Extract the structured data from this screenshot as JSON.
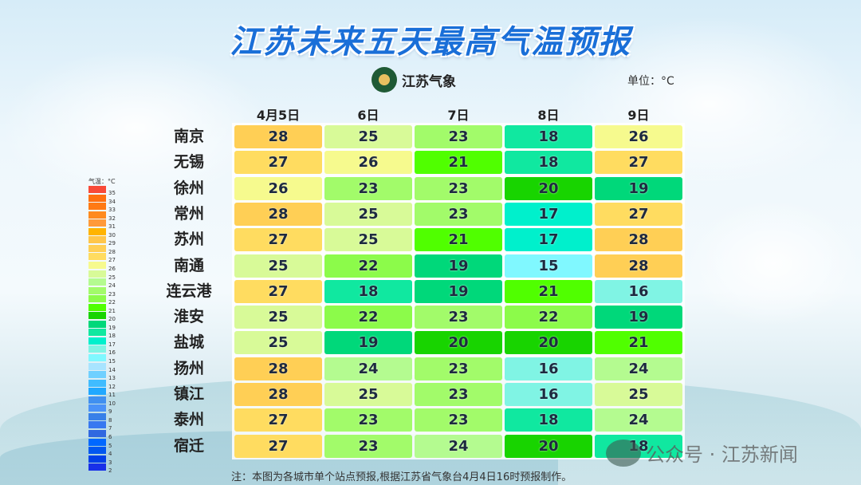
{
  "title": "江苏未来五天最高气温预报",
  "logo_text": "江苏气象",
  "unit": "单位：°C",
  "note": "注：本图为各城市单个站点预报,根据江苏省气象台4月4日16时预报制作。",
  "watermark": "公众号 · 江苏新闻",
  "chart_data": {
    "type": "heatmap",
    "title": "江苏未来五天最高气温预报",
    "columns": [
      "4月5日",
      "6日",
      "7日",
      "8日",
      "9日"
    ],
    "rows": [
      "南京",
      "无锡",
      "徐州",
      "常州",
      "苏州",
      "南通",
      "连云港",
      "淮安",
      "盐城",
      "扬州",
      "镇江",
      "泰州",
      "宿迁"
    ],
    "values": [
      [
        28,
        25,
        23,
        18,
        26
      ],
      [
        27,
        26,
        21,
        18,
        27
      ],
      [
        26,
        23,
        23,
        20,
        19
      ],
      [
        28,
        25,
        23,
        17,
        27
      ],
      [
        27,
        25,
        21,
        17,
        28
      ],
      [
        25,
        22,
        19,
        15,
        28
      ],
      [
        27,
        18,
        19,
        21,
        16
      ],
      [
        25,
        22,
        23,
        22,
        19
      ],
      [
        25,
        19,
        20,
        20,
        21
      ],
      [
        28,
        24,
        23,
        16,
        24
      ],
      [
        28,
        25,
        23,
        16,
        25
      ],
      [
        27,
        23,
        23,
        18,
        24
      ],
      [
        27,
        23,
        24,
        20,
        18
      ]
    ],
    "unit": "°C",
    "legend": {
      "title": "气温：°C",
      "ticks": [
        35,
        34,
        33,
        32,
        31,
        30,
        29,
        28,
        27,
        26,
        25,
        24,
        23,
        22,
        21,
        20,
        19,
        18,
        17,
        16,
        15,
        14,
        13,
        12,
        11,
        10,
        9,
        8,
        7,
        6,
        5,
        4,
        3,
        2
      ],
      "colors": {
        "35": "#f84a38",
        "34": "#ff7010",
        "33": "#ff7a14",
        "32": "#ff8a1e",
        "31": "#ff9a3a",
        "30": "#ffb400",
        "29": "#ffc64a",
        "28": "#ffcf55",
        "27": "#ffdc60",
        "26": "#f6fa8e",
        "25": "#d8fa98",
        "24": "#b4fb90",
        "23": "#a2fb6a",
        "22": "#8cfb4a",
        "21": "#50ff00",
        "20": "#18d400",
        "19": "#00d87a",
        "18": "#10e8a0",
        "17": "#00f0cc",
        "16": "#80f4e4",
        "15": "#80f8ff",
        "14": "#a8e4ff",
        "13": "#70d0ff",
        "12": "#40bcff",
        "11": "#20a8ff",
        "10": "#4090f0",
        "9": "#4a92f8",
        "8": "#3880e8",
        "7": "#3878f0",
        "6": "#3068e0",
        "5": "#0068ff",
        "4": "#0058f0",
        "3": "#0040e8",
        "2": "#1830e8"
      }
    }
  }
}
